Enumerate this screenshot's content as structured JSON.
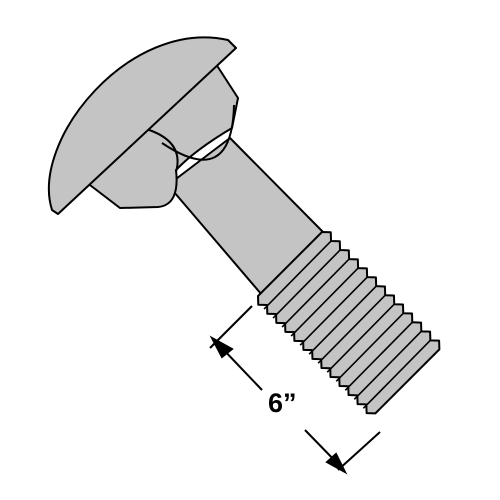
{
  "diagram": {
    "subject": "carriage bolt",
    "dimension_label": "6”",
    "colors": {
      "background": "#ffffff",
      "metal_fill": "#c4c4c4",
      "outline": "#000000"
    }
  }
}
